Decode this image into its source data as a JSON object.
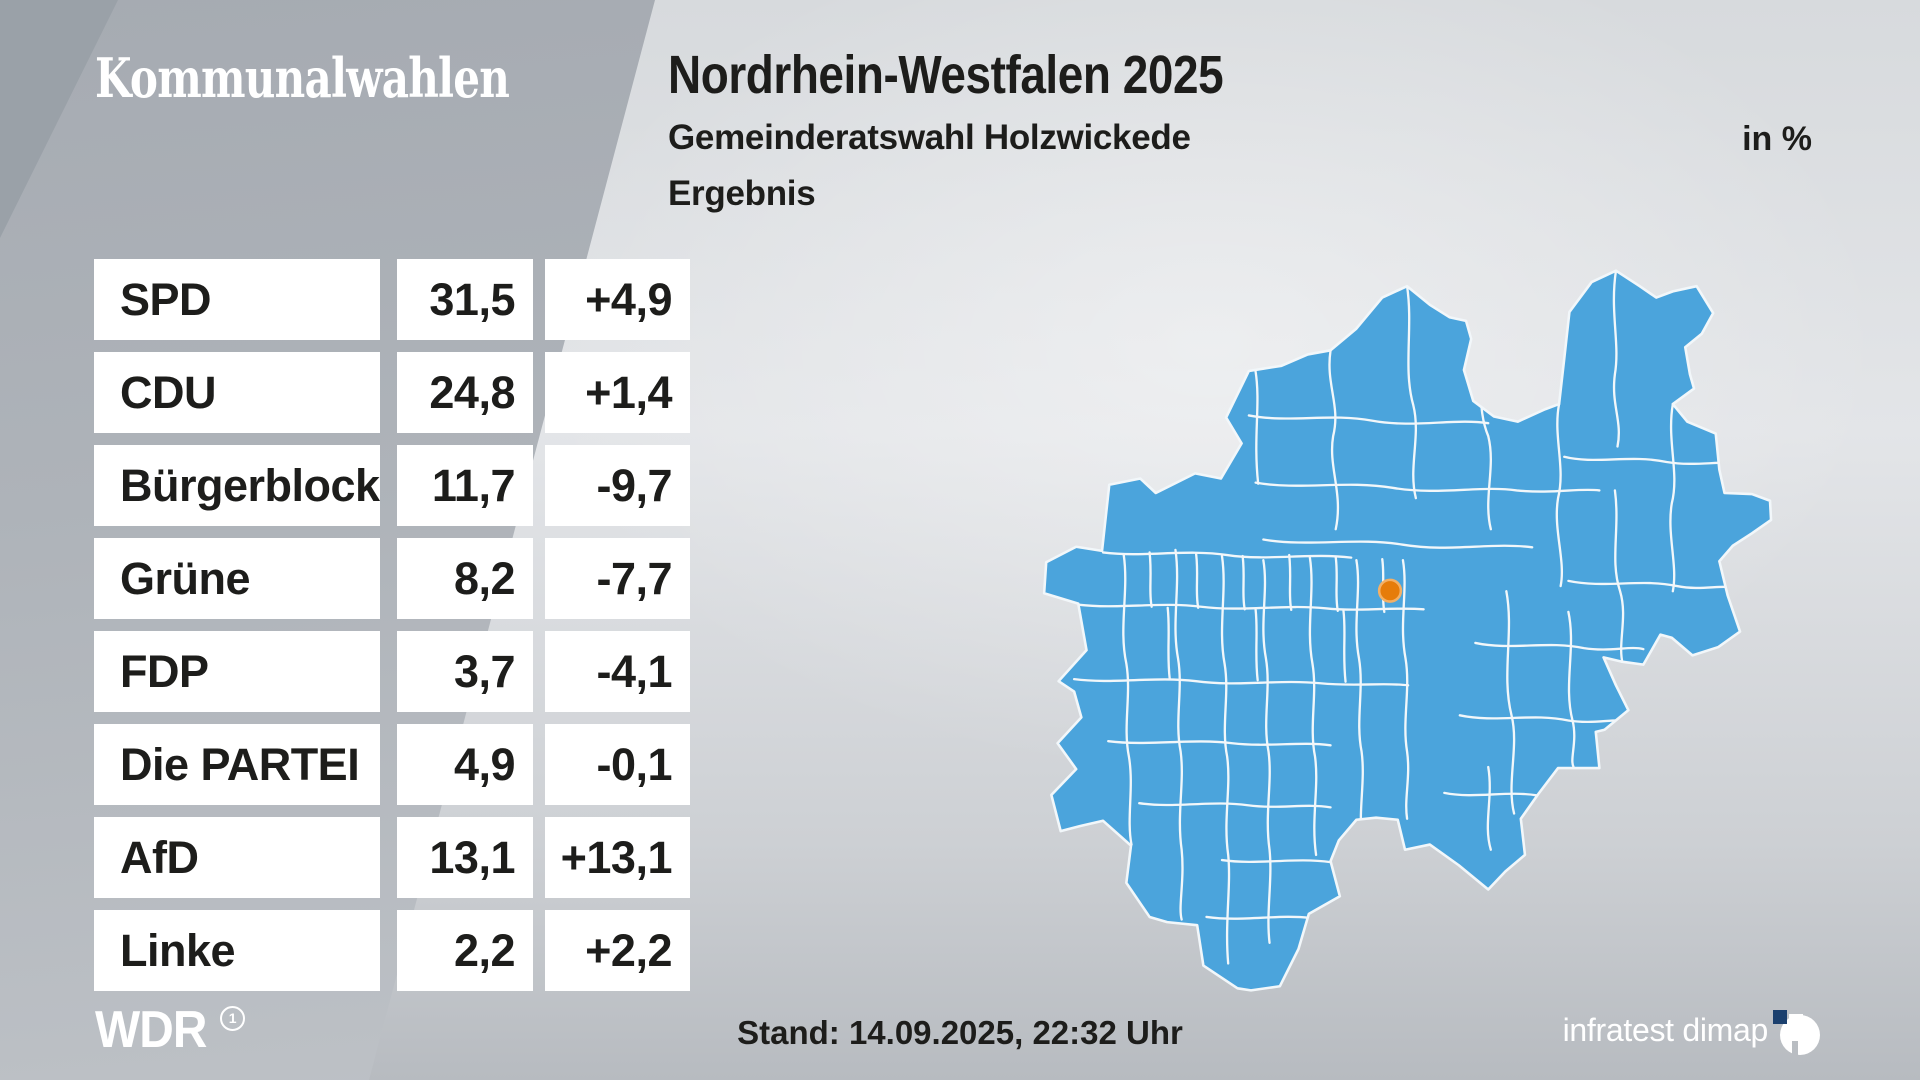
{
  "brand": {
    "program": "Kommunalwahlen",
    "broadcaster": "WDR",
    "ard_mark": "1",
    "source": "infratest dimap"
  },
  "header": {
    "title": "Nordrhein-Westfalen 2025",
    "subtitle": "Gemeinderatswahl Holzwickede",
    "section": "Ergebnis",
    "unit": "in %"
  },
  "results": {
    "rows": [
      {
        "party": "SPD",
        "value": "31,5",
        "change": "+4,9"
      },
      {
        "party": "CDU",
        "value": "24,8",
        "change": "+1,4"
      },
      {
        "party": "Bürgerblock",
        "value": "11,7",
        "change": "-9,7"
      },
      {
        "party": "Grüne",
        "value": "8,2",
        "change": "-7,7"
      },
      {
        "party": "FDP",
        "value": "3,7",
        "change": "-4,1"
      },
      {
        "party": "Die PARTEI",
        "value": "4,9",
        "change": "-0,1"
      },
      {
        "party": "AfD",
        "value": "13,1",
        "change": "+13,1"
      },
      {
        "party": "Linke",
        "value": "2,2",
        "change": "+2,2"
      }
    ]
  },
  "footer": {
    "stand": "Stand: 14.09.2025, 22:32 Uhr"
  },
  "map": {
    "region": "Nordrhein-Westfalen",
    "marker_town": "Holzwickede",
    "fill_color": "#4ba4dc",
    "border_color": "#f2f7fa",
    "marker_color": "#e67c0a",
    "marker_ring_color": "#f3b066",
    "logo_blue": "#1b406e"
  },
  "chart_data": {
    "type": "table",
    "title": "Nordrhein-Westfalen 2025 — Gemeinderatswahl Holzwickede, Ergebnis",
    "unit": "%",
    "categories": [
      "SPD",
      "CDU",
      "Bürgerblock",
      "Grüne",
      "FDP",
      "Die PARTEI",
      "AfD",
      "Linke"
    ],
    "series": [
      {
        "name": "Ergebnis",
        "values": [
          31.5,
          24.8,
          11.7,
          8.2,
          3.7,
          4.9,
          13.1,
          2.2
        ]
      },
      {
        "name": "Veränderung",
        "values": [
          4.9,
          1.4,
          -9.7,
          -7.7,
          -4.1,
          -0.1,
          13.1,
          2.2
        ]
      }
    ],
    "annotations": [
      "Stand: 14.09.2025, 22:32 Uhr"
    ],
    "source": "infratest dimap"
  }
}
